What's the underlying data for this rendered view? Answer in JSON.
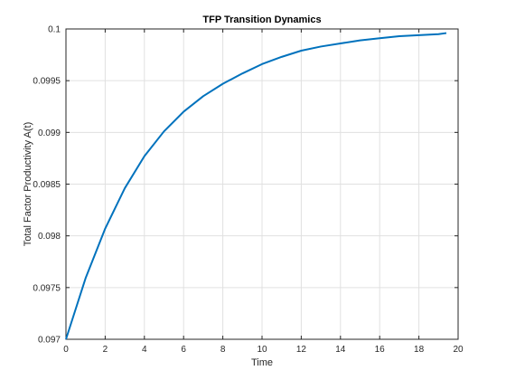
{
  "chart_data": {
    "type": "line",
    "title": "TFP Transition Dynamics",
    "xlabel": "Time",
    "ylabel": "Total Factor Productivity A(t)",
    "xlim": [
      0,
      20
    ],
    "ylim": [
      0.097,
      0.1
    ],
    "xticks": [
      "0",
      "2",
      "4",
      "6",
      "8",
      "10",
      "12",
      "14",
      "16",
      "18",
      "20"
    ],
    "yticks": [
      "0.097",
      "0.0975",
      "0.098",
      "0.0985",
      "0.099",
      "0.0995",
      "0.1"
    ],
    "grid": true,
    "series": [
      {
        "color": "#0072BD",
        "x": [
          0,
          1,
          2,
          3,
          4,
          5,
          6,
          7,
          8,
          9,
          10,
          11,
          12,
          13,
          14,
          15,
          16,
          17,
          18,
          19,
          19.4
        ],
        "y": [
          0.097,
          0.09759,
          0.09807,
          0.09846,
          0.09877,
          0.09901,
          0.0992,
          0.09935,
          0.09947,
          0.09957,
          0.09966,
          0.09973,
          0.09979,
          0.09983,
          0.09986,
          0.09989,
          0.09991,
          0.09993,
          0.09994,
          0.09995,
          0.09996
        ]
      }
    ]
  }
}
